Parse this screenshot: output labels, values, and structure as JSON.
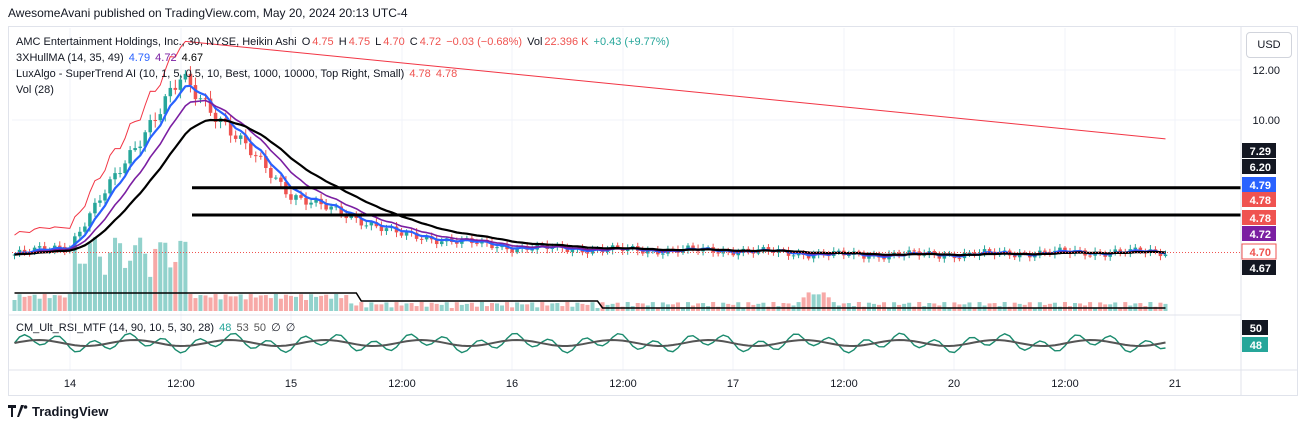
{
  "publisher_line": "AwesomeAvani published on TradingView.com, May 20, 2024 20:13 UTC-4",
  "footer": {
    "brand": "TradingView",
    "logo_icon": "tradingview-logo-icon"
  },
  "currency_button": "USD",
  "legend": {
    "main": {
      "title": "AMC Entertainment Holdings, Inc., 30, NYSE, Heikin Ashi",
      "o_label": "O",
      "o_value": "4.75",
      "h_label": "H",
      "h_value": "4.75",
      "l_label": "L",
      "l_value": "4.70",
      "c_label": "C",
      "c_value": "4.72",
      "change": "−0.03 (−0.68%)",
      "vol_label": "Vol",
      "vol_value": "22.396 K",
      "vol_change": "+0.43 (+9.77%)"
    },
    "hull": {
      "title": "3XHullMA (14, 35, 49)",
      "v1": "4.79",
      "v2": "4.72",
      "v3": "4.67"
    },
    "supertrend": {
      "title": "LuxAlgo - SuperTrend AI (10, 1, 5, 0.5, 10, Best, 1000, 10000, Top Right, Small)",
      "v1": "4.78",
      "v2": "4.78"
    },
    "vol": {
      "title": "Vol (28)"
    },
    "rsi": {
      "title": "CM_Ult_RSI_MTF (14, 90, 10, 5, 30, 28)",
      "v1": "48",
      "v2": "53",
      "v3": "50",
      "v4": "∅",
      "v5": "∅"
    }
  },
  "colors": {
    "up": "#26a69a",
    "down": "#ef5350",
    "hull_fast": "#2962ff",
    "hull_mid": "#7b1fa2",
    "hull_slow": "#000000",
    "supertrend": "#f23645",
    "rsi": "#1b8b6e",
    "rsi_signal": "#555555"
  },
  "chart_data": {
    "type": "candlestick",
    "symbol": "AMC",
    "interval": "30",
    "chart_style": "Heikin Ashi",
    "y_axis": {
      "ticks": [
        "12.00",
        "10.00"
      ],
      "scale": "linear",
      "range": [
        4.2,
        13.6
      ]
    },
    "x_axis": {
      "ticks": [
        "14",
        "12:00",
        "15",
        "12:00",
        "16",
        "12:00",
        "17",
        "12:00",
        "20",
        "12:00",
        "21"
      ]
    },
    "price_badges": [
      {
        "value": "7.29",
        "style": "dark"
      },
      {
        "value": "6.20",
        "style": "dark"
      },
      {
        "value": "4.79",
        "style": "blue"
      },
      {
        "value": "4.78",
        "style": "red"
      },
      {
        "value": "4.78",
        "style": "red"
      },
      {
        "value": "4.72",
        "style": "purple"
      },
      {
        "value": "4.70",
        "style": "red-outline"
      },
      {
        "value": "4.67",
        "style": "dark"
      }
    ],
    "horizontal_levels": [
      6.2,
      7.29
    ],
    "series_summary": [
      {
        "label": "14",
        "close": 5.0
      },
      {
        "label": "14 12:00",
        "close": 11.7
      },
      {
        "label": "15",
        "close": 7.0
      },
      {
        "label": "15 12:00",
        "close": 5.4
      },
      {
        "label": "16",
        "close": 4.9
      },
      {
        "label": "16 12:00",
        "close": 4.8
      },
      {
        "label": "17",
        "close": 4.78
      },
      {
        "label": "17 12:00",
        "close": 4.6
      },
      {
        "label": "20",
        "close": 4.62
      },
      {
        "label": "20 12:00",
        "close": 4.7
      },
      {
        "label": "21",
        "close": 4.72
      }
    ],
    "rsi_badges": [
      "50",
      "48"
    ]
  }
}
